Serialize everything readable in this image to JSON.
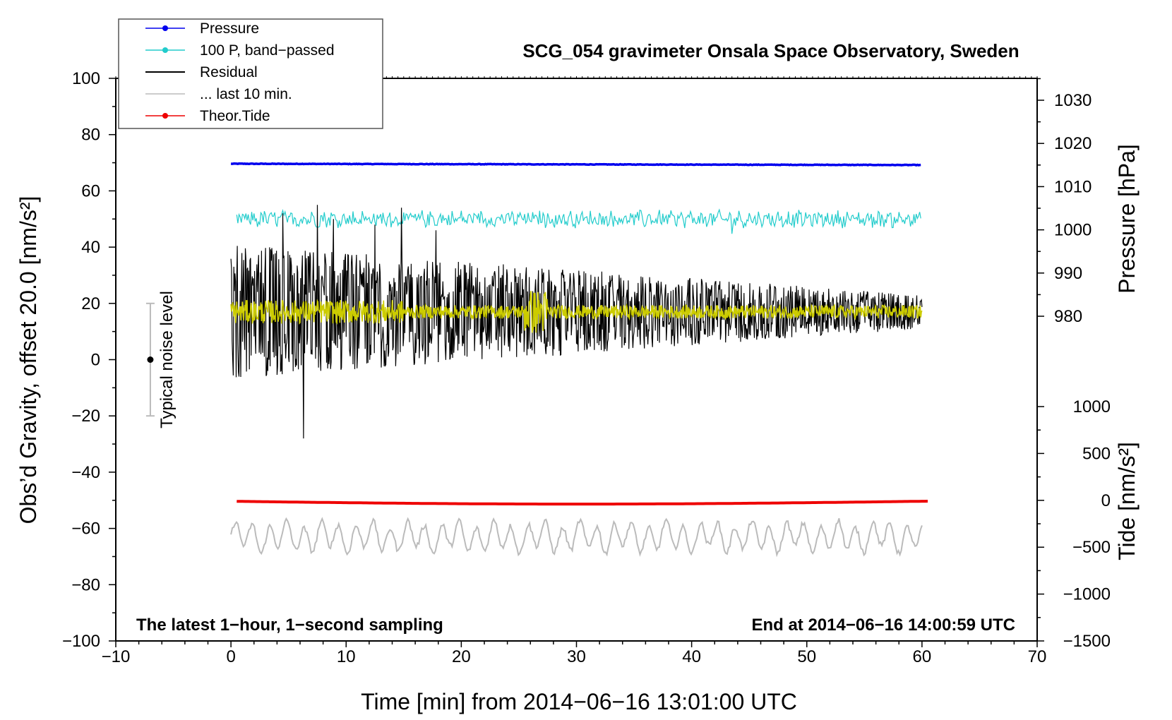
{
  "chart_data": {
    "type": "line",
    "title": "SCG_054 gravimeter Onsala Space Observatory, Sweden",
    "xlabel": "Time [min] from 2014−06−16 13:01:00 UTC",
    "ylabel_left": "Obs’d Gravity, offset 20.0 [nm/s²]",
    "ylabel_right_top": "Pressure [hPa]",
    "ylabel_right_bottom": "Tide [nm/s²]",
    "xlim": [
      -10,
      70
    ],
    "ylim": [
      -100,
      100
    ],
    "xticks": [
      "−10",
      "0",
      "10",
      "20",
      "30",
      "40",
      "50",
      "60",
      "70"
    ],
    "yticks_left": [
      "−100",
      "−80",
      "−60",
      "−40",
      "−20",
      "0",
      "20",
      "40",
      "60",
      "80",
      "100"
    ],
    "pressure_axis": {
      "range": [
        980,
        1030
      ],
      "ticks": [
        "1030",
        "1020",
        "1010",
        "1000",
        "990",
        "980"
      ]
    },
    "tide_axis": {
      "range": [
        -1500,
        1000
      ],
      "ticks": [
        "1000",
        "500",
        "0",
        "−500",
        "−1000",
        "−1500"
      ]
    },
    "legend": [
      {
        "label": "Pressure",
        "color": "#0000ee",
        "marker": true
      },
      {
        "label": "100 P, band−passed",
        "color": "#22cccc",
        "marker": true
      },
      {
        "label": "Residual",
        "color": "#000000",
        "marker": false
      },
      {
        "label": "... last 10 min.",
        "color": "#bbbbbb",
        "marker": false
      },
      {
        "label": "Theor.Tide",
        "color": "#ee0000",
        "marker": true
      }
    ],
    "noise_bar": {
      "label": "Typical noise level",
      "x": -7,
      "center": 0,
      "low": -20,
      "high": 20
    },
    "annotations": {
      "left": "The latest 1−hour, 1−second sampling",
      "right": "End at 2014−06−16 14:00:59 UTC"
    },
    "series": [
      {
        "name": "Pressure",
        "color": "#0000ee",
        "axis": "pressure",
        "x_range": [
          0,
          60
        ],
        "start": 1015.3,
        "end": 1015.0,
        "noise": 0.12
      },
      {
        "name": "100 P, band−passed",
        "color": "#22cccc",
        "axis": "gravity",
        "x_range": [
          0.5,
          60
        ],
        "center": 50,
        "amplitude": 2.5
      },
      {
        "name": "Residual",
        "color": "#000000",
        "axis": "gravity",
        "x_range": [
          0,
          60
        ],
        "center": 17,
        "amplitude_start": 20,
        "amplitude_end": 5,
        "min": -28,
        "max": 55
      },
      {
        "name": "... last 10 min.",
        "color": "#bbbbbb",
        "axis": "gravity",
        "x_range": [
          0,
          60
        ],
        "center": -63,
        "min": -70,
        "max": -53
      },
      {
        "name": "band-passed residual",
        "color": "#cccc00",
        "axis": "gravity",
        "x_range": [
          0,
          60
        ],
        "center": 17,
        "amplitude": 3
      },
      {
        "name": "Theor.Tide",
        "color": "#ee0000",
        "axis": "tide",
        "x_range": [
          0.5,
          60.5
        ],
        "values_start": -10,
        "values_end": 0,
        "value_min": -40
      }
    ]
  }
}
